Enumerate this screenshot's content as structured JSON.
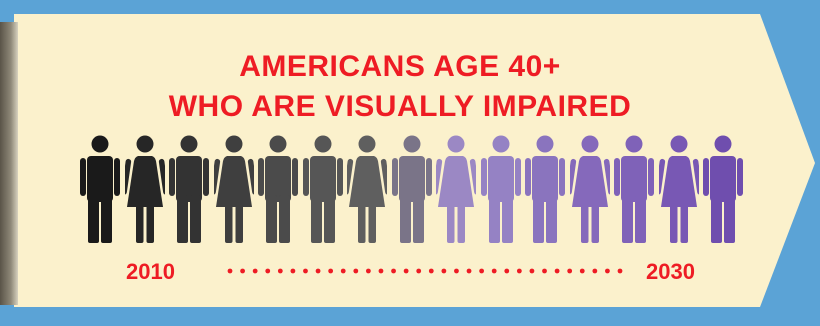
{
  "title": {
    "line1": "AMERICANS AGE 40+",
    "line2": "WHO ARE VISUALLY IMPAIRED"
  },
  "timeline": {
    "start": "2010",
    "end": "2030"
  },
  "figures": [
    {
      "type": "man",
      "color": "#1a1a1a"
    },
    {
      "type": "woman",
      "color": "#262626"
    },
    {
      "type": "man",
      "color": "#333333"
    },
    {
      "type": "woman",
      "color": "#3f3f3f"
    },
    {
      "type": "man",
      "color": "#4b4b4b"
    },
    {
      "type": "man",
      "color": "#565656"
    },
    {
      "type": "woman",
      "color": "#5f5f5f"
    },
    {
      "type": "man",
      "color": "#7a7488"
    },
    {
      "type": "woman",
      "color": "#9b88c4"
    },
    {
      "type": "man",
      "color": "#9582c4"
    },
    {
      "type": "man",
      "color": "#8a74be"
    },
    {
      "type": "woman",
      "color": "#8569bb"
    },
    {
      "type": "man",
      "color": "#7f62b8"
    },
    {
      "type": "woman",
      "color": "#7858b4"
    },
    {
      "type": "man",
      "color": "#6f4eae"
    }
  ],
  "colors": {
    "background": "#5ba3d6",
    "banner": "#fbf1cc",
    "accent": "#ee1c24"
  }
}
